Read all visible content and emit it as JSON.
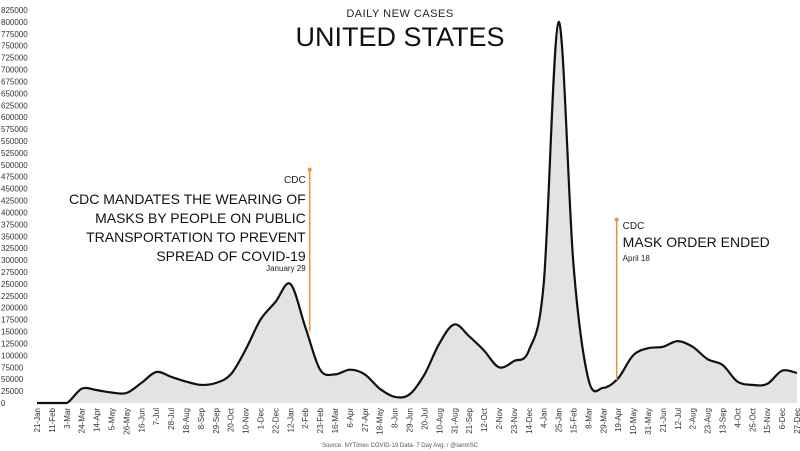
{
  "chart_data": {
    "type": "area",
    "subtitle": "DAILY NEW CASES",
    "title": "UNITED STATES",
    "source": "Source: NYTimes COVID-19 Data- 7 Day Avg. / @IanmSC",
    "ylim": [
      0,
      825000
    ],
    "y_ticks": [
      "0",
      "25000",
      "50000",
      "75000",
      "100000",
      "125000",
      "150000",
      "175000",
      "200000",
      "225000",
      "250000",
      "275000",
      "300000",
      "325000",
      "350000",
      "375000",
      "400000",
      "425000",
      "450000",
      "475000",
      "500000",
      "525000",
      "550000",
      "575000",
      "600000",
      "625000",
      "650000",
      "675000",
      "700000",
      "725000",
      "750000",
      "775000",
      "800000",
      "825000"
    ],
    "x_ticks": [
      "21-Jan",
      "11-Feb",
      "3-Mar",
      "24-Mar",
      "14-Apr",
      "5-May",
      "26-May",
      "16-Jun",
      "7-Jul",
      "28-Jul",
      "18-Aug",
      "8-Sep",
      "29-Sep",
      "20-Oct",
      "10-Nov",
      "1-Dec",
      "22-Dec",
      "12-Jan",
      "2-Feb",
      "23-Feb",
      "16-Mar",
      "6-Apr",
      "27-Apr",
      "18-May",
      "8-Jun",
      "29-Jun",
      "20-Jul",
      "10-Aug",
      "31-Aug",
      "21-Sep",
      "12-Oct",
      "2-Nov",
      "23-Nov",
      "14-Dec",
      "4-Jan",
      "25-Jan",
      "15-Feb",
      "8-Mar",
      "29-Mar",
      "19-Apr",
      "10-May",
      "31-May",
      "21-Jun",
      "12-Jul",
      "2-Aug",
      "23-Aug",
      "13-Sep",
      "4-Oct",
      "25-Oct",
      "15-Nov",
      "6-Dec",
      "27-Dec"
    ],
    "grid": false,
    "color": "#111111",
    "fill_color": "#e3e3e3",
    "series": [
      {
        "x": [
          0,
          1,
          2,
          3,
          4,
          5,
          6,
          7,
          8,
          9,
          10,
          11,
          12,
          13,
          14,
          15,
          16,
          17,
          18,
          19,
          20,
          21,
          22,
          23,
          24,
          25,
          26,
          27,
          28,
          29,
          30,
          31,
          32,
          33,
          34,
          35,
          36,
          37,
          38,
          39,
          40,
          41,
          42,
          43,
          44,
          45,
          46,
          47,
          48,
          49,
          50,
          51
        ],
        "values": [
          0,
          0,
          0,
          30000,
          27000,
          22000,
          21000,
          42000,
          65000,
          55000,
          45000,
          38000,
          42000,
          60000,
          112000,
          175000,
          212000,
          250000,
          160000,
          70000,
          60000,
          70000,
          60000,
          30000,
          13000,
          18000,
          60000,
          125000,
          165000,
          140000,
          110000,
          75000,
          88000,
          110000,
          250000,
          800000,
          290000,
          50000,
          32000,
          52000,
          100000,
          115000,
          118000,
          130000,
          118000,
          92000,
          80000,
          45000,
          38000,
          40000,
          68000,
          63000
        ]
      }
    ],
    "annotations": [
      {
        "label": "CDC",
        "text_lines": [
          "CDC MANDATES THE WEARING OF",
          "MASKS BY PEOPLE ON PUBLIC",
          "TRANSPORTATION TO PREVENT",
          "SPREAD OF COVID-19"
        ],
        "date": "January 29",
        "x": 18.3,
        "line_top": 490000,
        "line_bottom": 150000,
        "color": "#e8913a"
      },
      {
        "label": "CDC",
        "text_lines": [
          "MASK ORDER ENDED"
        ],
        "date": "April 18",
        "x": 38.9,
        "line_top": 385000,
        "line_bottom": 48000,
        "color": "#e8913a"
      }
    ]
  }
}
